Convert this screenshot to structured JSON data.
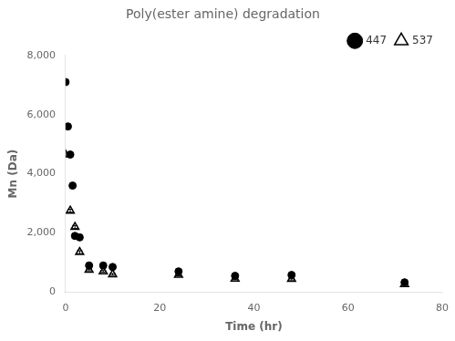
{
  "chart_data": {
    "type": "scatter",
    "title": "Poly(ester amine) degradation",
    "x_label": "Time (hr)",
    "y_label": "Mn (Da)",
    "xlim": [
      0,
      80
    ],
    "ylim": [
      0,
      8000
    ],
    "xticks": [
      0,
      20,
      40,
      60,
      80
    ],
    "yticks": [
      0,
      2000,
      4000,
      6000,
      8000
    ],
    "grid": false,
    "legend": "upper right",
    "series": [
      {
        "name": "447",
        "color": "black",
        "marker": "circle",
        "x": [
          0,
          0.5,
          1,
          1.5,
          2,
          3,
          5,
          8,
          10,
          24,
          36,
          48,
          72
        ],
        "values": [
          7100,
          5600,
          4650,
          3600,
          1900,
          1850,
          900,
          900,
          850,
          700,
          550,
          580,
          330
        ],
        "yerr": [
          50,
          50,
          50,
          50,
          50,
          50,
          40,
          40,
          40,
          40,
          30,
          30,
          30
        ]
      },
      {
        "name": "537",
        "color": "black",
        "marker": "triangle-open",
        "x": [
          0,
          1,
          2,
          3,
          5,
          8,
          10,
          24,
          36,
          48,
          72
        ],
        "values": [
          4650,
          2750,
          2200,
          1350,
          750,
          700,
          600,
          580,
          450,
          440,
          270
        ],
        "yerr": [
          50,
          50,
          50,
          50,
          30,
          30,
          30,
          30,
          30,
          30,
          25
        ]
      }
    ]
  }
}
